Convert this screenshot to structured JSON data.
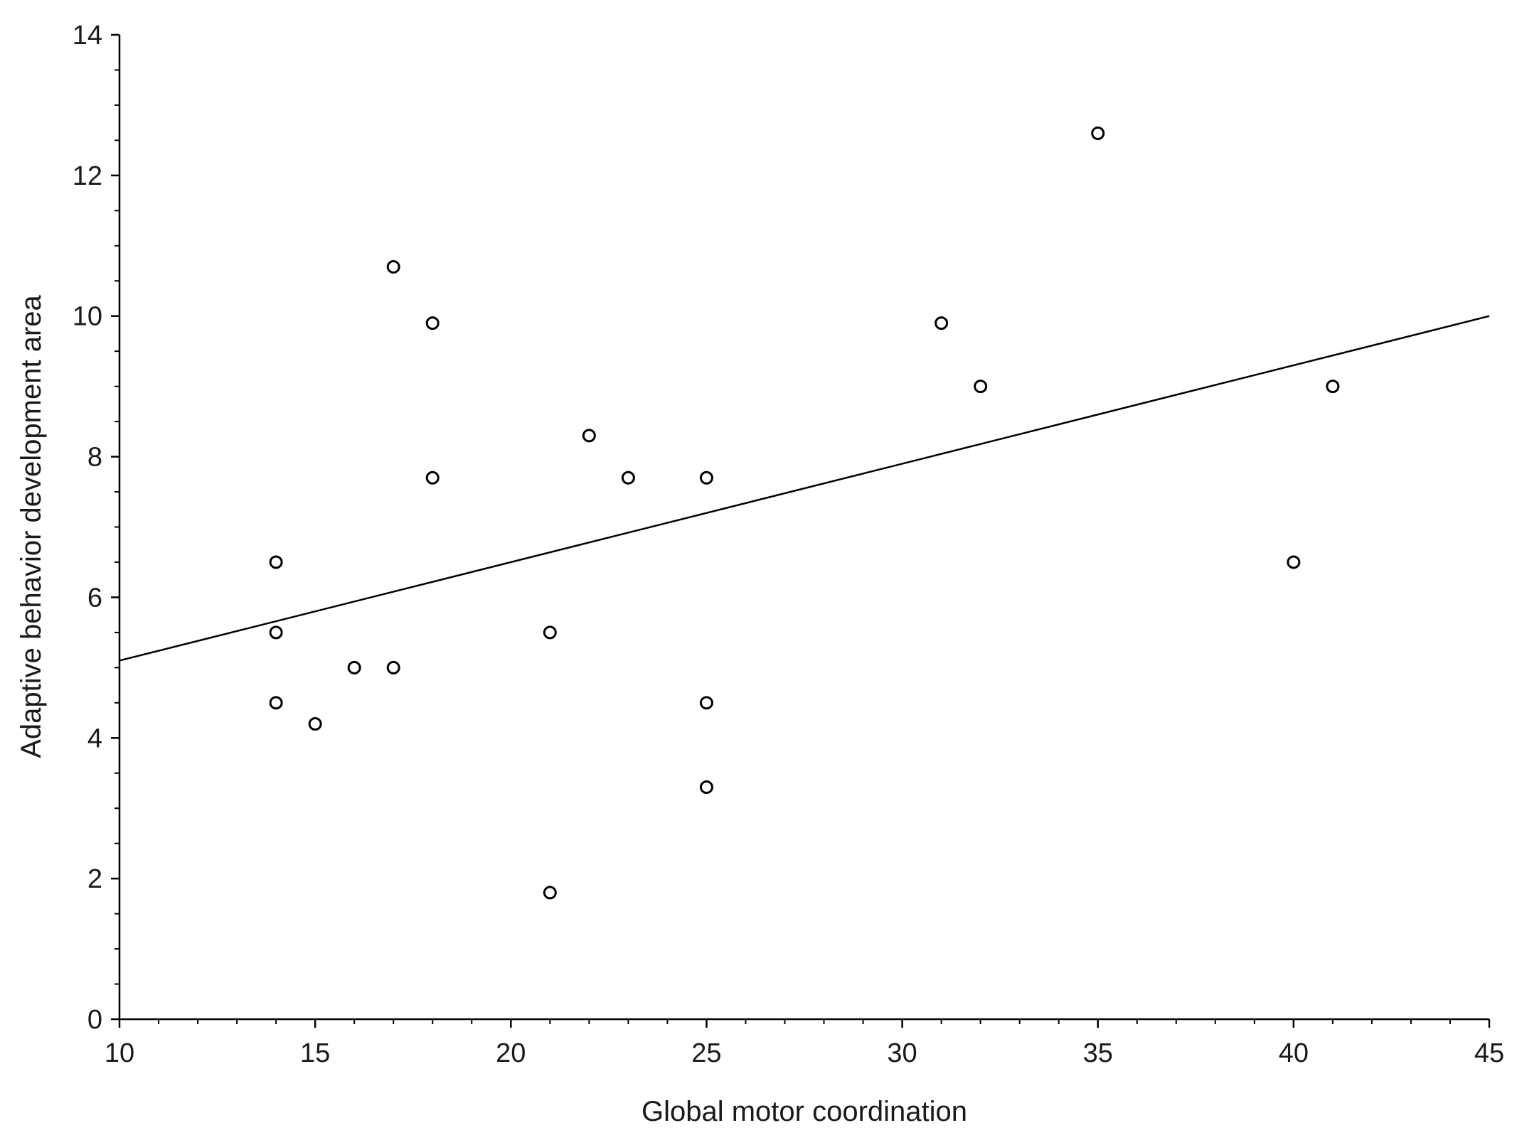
{
  "chart_data": {
    "type": "scatter",
    "xlabel": "Global motor coordination",
    "ylabel": "Adaptive behavior development area",
    "xlim": [
      10,
      45
    ],
    "ylim": [
      0,
      14
    ],
    "x_ticks": [
      10,
      15,
      20,
      25,
      30,
      35,
      40,
      45
    ],
    "y_ticks": [
      0,
      2,
      4,
      6,
      8,
      10,
      12,
      14
    ],
    "grid": false,
    "marker": "open-circle",
    "points": [
      {
        "x": 14,
        "y": 6.5
      },
      {
        "x": 14,
        "y": 5.5
      },
      {
        "x": 14,
        "y": 4.5
      },
      {
        "x": 15,
        "y": 4.2
      },
      {
        "x": 16,
        "y": 5.0
      },
      {
        "x": 17,
        "y": 5.0
      },
      {
        "x": 17,
        "y": 10.7
      },
      {
        "x": 18,
        "y": 9.9
      },
      {
        "x": 18,
        "y": 7.7
      },
      {
        "x": 21,
        "y": 5.5
      },
      {
        "x": 21,
        "y": 1.8
      },
      {
        "x": 22,
        "y": 8.3
      },
      {
        "x": 23,
        "y": 7.7
      },
      {
        "x": 25,
        "y": 7.7
      },
      {
        "x": 25,
        "y": 4.5
      },
      {
        "x": 25,
        "y": 3.3
      },
      {
        "x": 31,
        "y": 9.9
      },
      {
        "x": 32,
        "y": 9.0
      },
      {
        "x": 35,
        "y": 12.6
      },
      {
        "x": 40,
        "y": 6.5
      },
      {
        "x": 41,
        "y": 9.0
      }
    ],
    "fit_line": {
      "type": "linear",
      "from": {
        "x": 10,
        "y": 5.1
      },
      "to": {
        "x": 45,
        "y": 10.0
      }
    }
  }
}
